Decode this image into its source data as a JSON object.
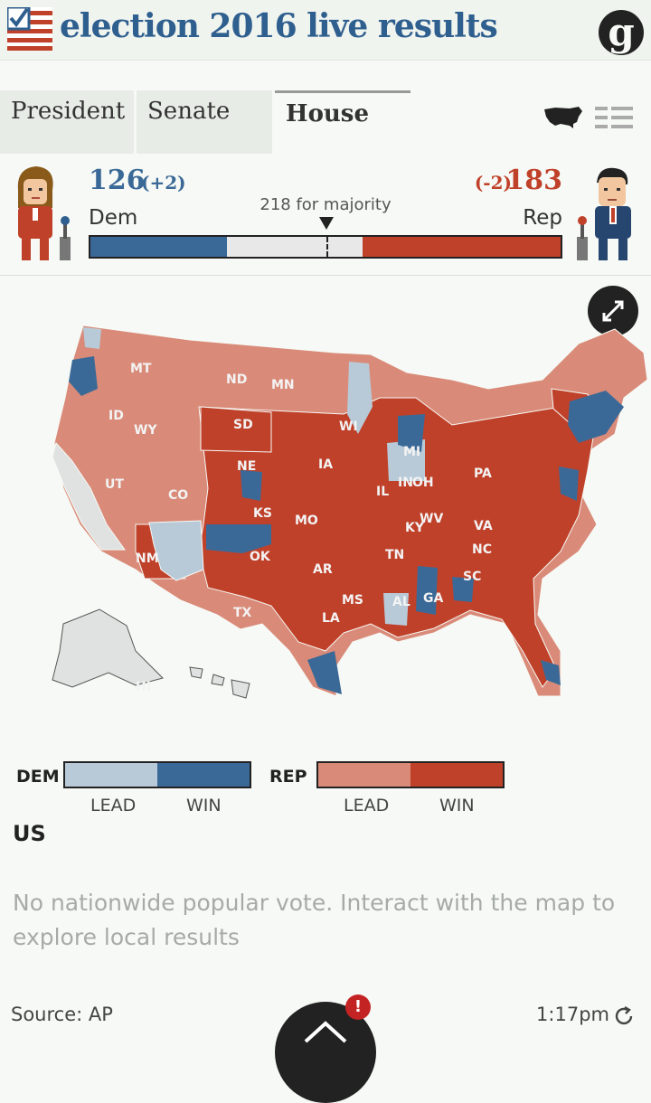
{
  "header": {
    "title": "election 2016 live results",
    "logo_letter": "g",
    "icons": [
      "us-flag-checkbox-icon",
      "guardian-logo-icon"
    ]
  },
  "tabs": [
    {
      "label": "President",
      "active": false
    },
    {
      "label": "Senate",
      "active": false
    },
    {
      "label": "House",
      "active": true
    }
  ],
  "view_icons": [
    "us-map-view-icon",
    "list-view-icon"
  ],
  "scoreboard": {
    "dem": {
      "seats": "126",
      "change": "(+2)",
      "party": "Dem"
    },
    "rep": {
      "seats": "183",
      "change": "(-2)",
      "party": "Rep"
    },
    "majority_label": "218 for majority",
    "total_seats": 435,
    "majority_seats": 218,
    "dem_seat_count": 126,
    "rep_seat_count": 183
  },
  "colors": {
    "dem_win": "#3b6997",
    "dem_lead": "#b8cad8",
    "rep_win": "#c0412a",
    "rep_lead": "#d98a78",
    "no_result": "#dfe2e0"
  },
  "map": {
    "state_labels": [
      "MT",
      "ND",
      "MN",
      "ID",
      "WY",
      "SD",
      "WI",
      "NE",
      "IA",
      "MI",
      "PA",
      "UT",
      "CO",
      "IL",
      "IN",
      "OH",
      "KS",
      "MO",
      "KY",
      "WV",
      "VA",
      "OK",
      "TN",
      "NC",
      "NM",
      "AR",
      "SC",
      "MS",
      "AL",
      "GA",
      "TX",
      "LA",
      "HI"
    ]
  },
  "legend": {
    "dem_label": "DEM",
    "rep_label": "REP",
    "lead_label": "LEAD",
    "win_label": "WIN"
  },
  "region": {
    "name": "US",
    "note": "No nationwide popular vote. Interact with the map to explore local results"
  },
  "footer": {
    "source": "Source: AP",
    "updated": "1:17pm",
    "alert_count": "!"
  }
}
